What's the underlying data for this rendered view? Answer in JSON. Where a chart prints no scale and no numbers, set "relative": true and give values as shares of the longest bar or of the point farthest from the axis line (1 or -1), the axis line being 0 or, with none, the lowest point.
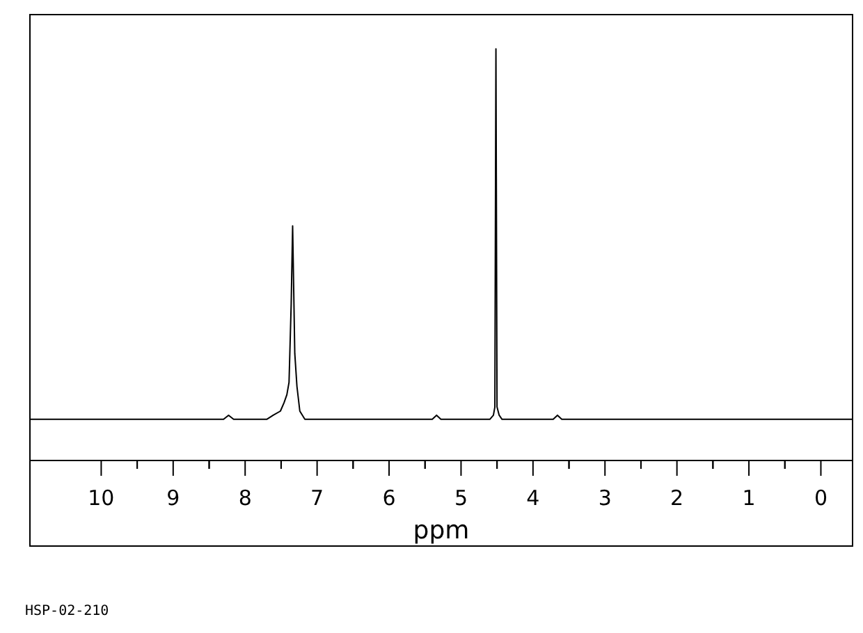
{
  "chart_data": {
    "type": "line",
    "xlabel": "ppm",
    "relative": true,
    "annotations": [
      "HSP-02-210"
    ],
    "xlim": [
      11,
      -0.45
    ],
    "xticks": [
      10,
      {
        "value": 9.5,
        "label": null
      },
      9,
      {
        "value": 8.5,
        "label": null
      },
      8,
      {
        "value": 7.5,
        "label": null
      },
      7,
      {
        "value": 6.5,
        "label": null
      },
      6,
      {
        "value": 5.5,
        "label": null
      },
      5,
      {
        "value": 4.5,
        "label": null
      },
      4,
      {
        "value": 3.5,
        "label": null
      },
      3,
      {
        "value": 2.5,
        "label": null
      },
      2,
      {
        "value": 1.5,
        "label": null
      },
      1,
      {
        "value": 0.5,
        "label": null
      },
      0
    ],
    "marker": "none",
    "line_style": "solid",
    "series": [
      {
        "color": "#000000",
        "x": [
          11,
          8.3,
          8.23,
          8.16,
          7.7,
          7.61,
          7.51,
          7.46,
          7.42,
          7.39,
          7.36,
          7.34,
          7.31,
          7.28,
          7.24,
          7.17,
          7.09,
          5.4,
          5.34,
          5.28,
          4.6,
          4.55,
          4.53,
          4.515,
          4.5,
          4.47,
          4.43,
          3.72,
          3.66,
          3.6,
          -0.45
        ],
        "values": [
          0.1,
          0.1,
          0.11,
          0.1,
          0.1,
          0.11,
          0.12,
          0.14,
          0.16,
          0.19,
          0.38,
          0.57,
          0.26,
          0.18,
          0.12,
          0.1,
          0.1,
          0.1,
          0.11,
          0.1,
          0.1,
          0.11,
          0.13,
          1.0,
          0.13,
          0.11,
          0.1,
          0.1,
          0.11,
          0.1,
          0.1
        ]
      }
    ]
  }
}
